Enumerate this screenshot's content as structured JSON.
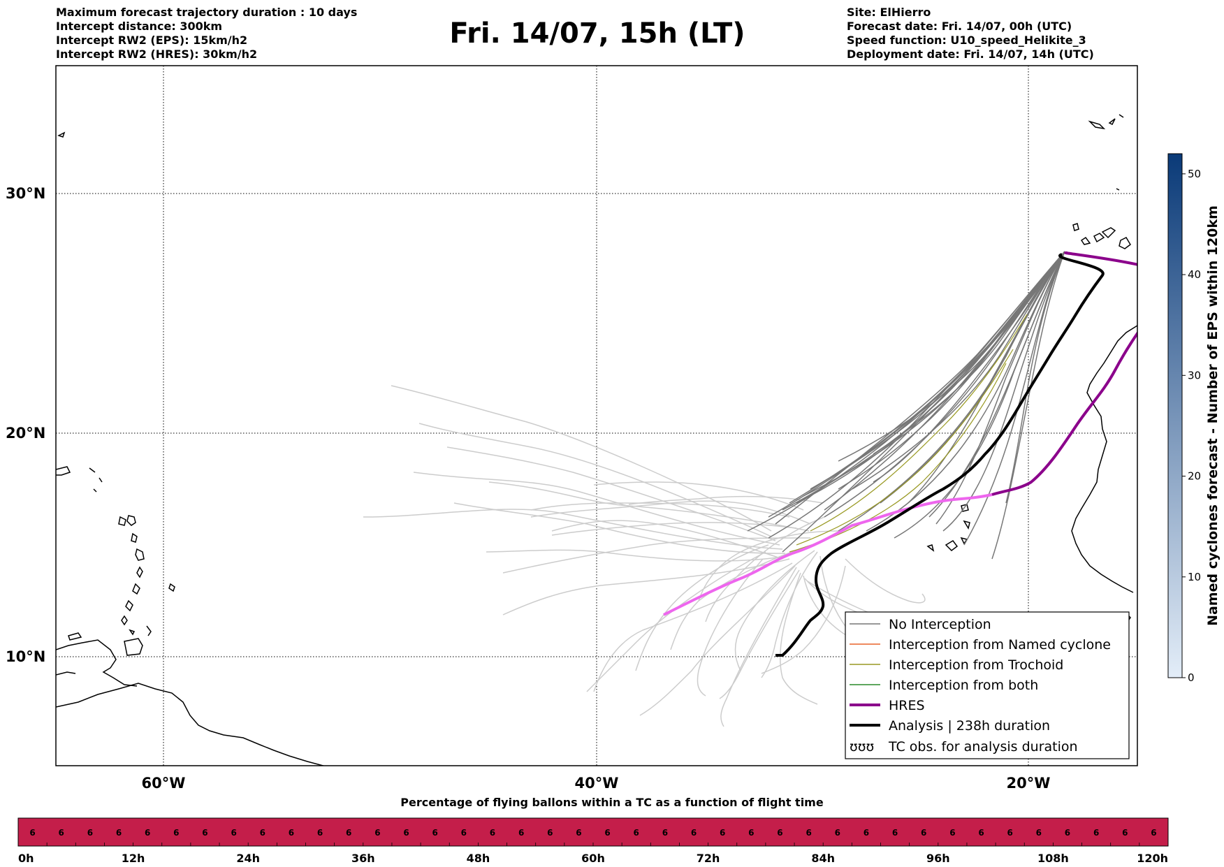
{
  "header": {
    "title": "Fri. 14/07, 15h (LT)",
    "left_lines": [
      "Maximum forecast trajectory duration : 10 days",
      "Intercept distance: 300km",
      "Intercept RW2 (EPS):  15km/h2",
      "Intercept RW2 (HRES): 30km/h2"
    ],
    "right_lines": [
      "Site: ElHierro",
      "Forecast date: Fri. 14/07, 00h (UTC)",
      "Speed function: U10_speed_Helikite_3",
      "Deployment date: Fri. 14/07, 14h (UTC)"
    ]
  },
  "map": {
    "lat_labels": [
      "30°N",
      "20°N",
      "10°N"
    ],
    "lon_labels": [
      "60°W",
      "40°W",
      "20°W"
    ],
    "colors": {
      "eps_no_interception": "#777777",
      "eps_faded": "#cccccc",
      "named_cyclone": "#e8632a",
      "trochoid": "#999922",
      "both": "#2a8a2a",
      "hres": "#8b008b",
      "hres_faded": "#ee66ee",
      "analysis": "#000000"
    }
  },
  "legend": {
    "items": [
      {
        "label": "No Interception",
        "color": "#777777",
        "width": 1.5
      },
      {
        "label": "Interception from Named cyclone",
        "color": "#e8632a",
        "width": 1.5
      },
      {
        "label": "Interception from Trochoid",
        "color": "#999922",
        "width": 1.5
      },
      {
        "label": "Interception from both",
        "color": "#2a8a2a",
        "width": 1.5
      },
      {
        "label": "HRES",
        "color": "#8b008b",
        "width": 4
      },
      {
        "label": "Analysis | 238h duration",
        "color": "#000000",
        "width": 4
      }
    ],
    "tc_label": "TC obs. for analysis duration",
    "tc_symbol": "ʊʊʊ"
  },
  "colorbar": {
    "title": "Named cyclones forecast - Number of EPS within 120km",
    "ticks": [
      "0",
      "10",
      "20",
      "30",
      "40",
      "50"
    ],
    "max": 52,
    "color_low": "#e3edf8",
    "color_high": "#0a3a78"
  },
  "timebar": {
    "title": "Percentage of flying ballons within a TC as a function of flight time",
    "color": "#c41e4a",
    "time_labels": [
      "0h",
      "12h",
      "24h",
      "36h",
      "48h",
      "60h",
      "72h",
      "84h",
      "96h",
      "108h",
      "120h"
    ],
    "percent_values": [
      "6",
      "6",
      "6",
      "6",
      "6",
      "6",
      "6",
      "6",
      "6",
      "6",
      "6",
      "6",
      "6",
      "6",
      "6",
      "6",
      "6",
      "6",
      "6",
      "6",
      "6",
      "6",
      "6",
      "6",
      "6",
      "6",
      "6",
      "6",
      "6",
      "6",
      "6",
      "6",
      "6",
      "6",
      "6",
      "6",
      "6",
      "6",
      "6",
      "6"
    ]
  }
}
